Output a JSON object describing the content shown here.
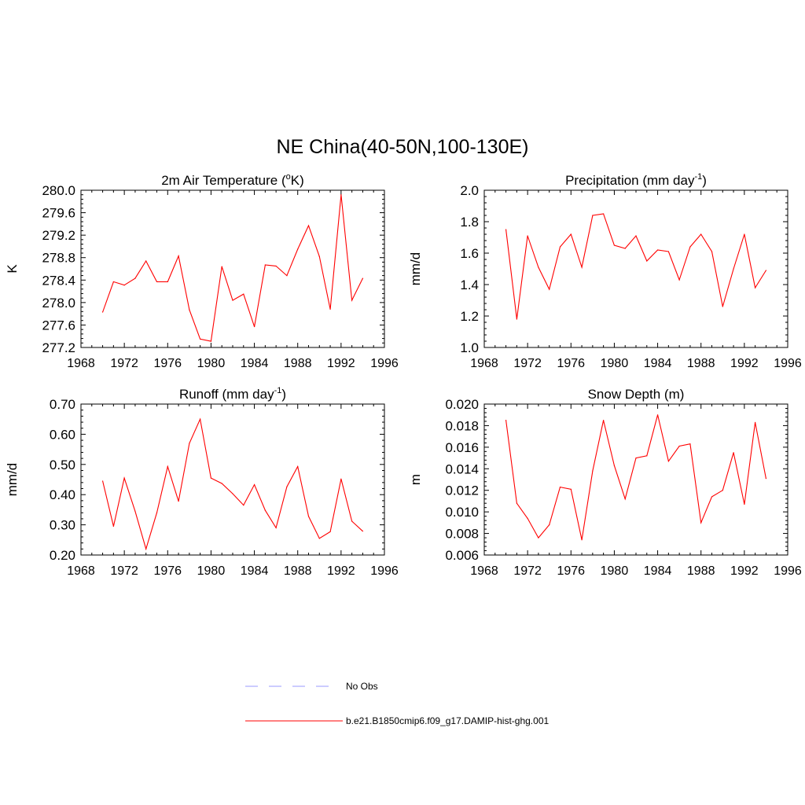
{
  "figure": {
    "title": "NE China(40-50N,100-130E)"
  },
  "colors": {
    "model_line": "#ff0000",
    "obs_line": "#9999ff",
    "axis": "#000000"
  },
  "chart_data": [
    {
      "type": "line",
      "title": "2m Air Temperature (",
      "title_sup": "o",
      "title_after": "K)",
      "ylabel": "K",
      "xlim": [
        1968,
        1996
      ],
      "ylim": [
        277.2,
        280.0
      ],
      "xticks": [
        "1968",
        "1972",
        "1976",
        "1980",
        "1984",
        "1988",
        "1992",
        "1996"
      ],
      "yticks": [
        "277.2",
        "277.6",
        "278.0",
        "278.4",
        "278.8",
        "279.2",
        "279.6",
        "280.0"
      ],
      "series": [
        {
          "x": [
            1970,
            1971,
            1972,
            1973,
            1974,
            1975,
            1976,
            1977,
            1978,
            1979,
            1980,
            1981,
            1982,
            1983,
            1984,
            1985,
            1986,
            1987,
            1988,
            1989,
            1990,
            1991,
            1992,
            1993,
            1994
          ],
          "y": [
            277.83,
            278.37,
            278.31,
            278.43,
            278.74,
            278.37,
            278.37,
            278.83,
            277.87,
            277.35,
            277.31,
            278.64,
            278.04,
            278.15,
            277.57,
            278.67,
            278.65,
            278.48,
            278.95,
            279.37,
            278.82,
            277.88,
            279.92,
            278.04,
            278.43
          ]
        }
      ]
    },
    {
      "type": "line",
      "title": "Precipitation (mm day",
      "title_sup": "-1",
      "title_after": ")",
      "ylabel": "mm/d",
      "xlim": [
        1968,
        1996
      ],
      "ylim": [
        1.0,
        2.0
      ],
      "xticks": [
        "1968",
        "1972",
        "1976",
        "1980",
        "1984",
        "1988",
        "1992",
        "1996"
      ],
      "yticks": [
        "1.0",
        "1.2",
        "1.4",
        "1.6",
        "1.8",
        "2.0"
      ],
      "series": [
        {
          "x": [
            1970,
            1971,
            1972,
            1973,
            1974,
            1975,
            1976,
            1977,
            1978,
            1979,
            1980,
            1981,
            1982,
            1983,
            1984,
            1985,
            1986,
            1987,
            1988,
            1989,
            1990,
            1991,
            1992,
            1993,
            1994
          ],
          "y": [
            1.75,
            1.18,
            1.71,
            1.51,
            1.37,
            1.64,
            1.72,
            1.51,
            1.84,
            1.85,
            1.65,
            1.63,
            1.71,
            1.55,
            1.62,
            1.61,
            1.43,
            1.64,
            1.72,
            1.61,
            1.26,
            1.5,
            1.72,
            1.38,
            1.49
          ]
        }
      ]
    },
    {
      "type": "line",
      "title": "Runoff (mm day",
      "title_sup": "-1",
      "title_after": ")",
      "ylabel": "mm/d",
      "xlim": [
        1968,
        1996
      ],
      "ylim": [
        0.2,
        0.7
      ],
      "xticks": [
        "1968",
        "1972",
        "1976",
        "1980",
        "1984",
        "1988",
        "1992",
        "1996"
      ],
      "yticks": [
        "0.20",
        "0.30",
        "0.40",
        "0.50",
        "0.60",
        "0.70"
      ],
      "series": [
        {
          "x": [
            1970,
            1971,
            1972,
            1973,
            1974,
            1975,
            1976,
            1977,
            1978,
            1979,
            1980,
            1981,
            1982,
            1983,
            1984,
            1985,
            1986,
            1987,
            1988,
            1989,
            1990,
            1991,
            1992,
            1993,
            1994
          ],
          "y": [
            0.445,
            0.295,
            0.455,
            0.345,
            0.22,
            0.34,
            0.493,
            0.378,
            0.57,
            0.65,
            0.455,
            0.437,
            0.403,
            0.365,
            0.433,
            0.348,
            0.29,
            0.426,
            0.493,
            0.328,
            0.255,
            0.277,
            0.452,
            0.312,
            0.279
          ]
        }
      ]
    },
    {
      "type": "line",
      "title": "Snow Depth (m)",
      "title_sup": "",
      "title_after": "",
      "ylabel": "m",
      "xlim": [
        1968,
        1996
      ],
      "ylim": [
        0.006,
        0.02
      ],
      "xticks": [
        "1968",
        "1972",
        "1976",
        "1980",
        "1984",
        "1988",
        "1992",
        "1996"
      ],
      "yticks": [
        "0.006",
        "0.008",
        "0.010",
        "0.012",
        "0.014",
        "0.016",
        "0.018",
        "0.020"
      ],
      "series": [
        {
          "x": [
            1970,
            1971,
            1972,
            1973,
            1974,
            1975,
            1976,
            1977,
            1978,
            1979,
            1980,
            1981,
            1982,
            1983,
            1984,
            1985,
            1986,
            1987,
            1988,
            1989,
            1990,
            1991,
            1992,
            1993,
            1994
          ],
          "y": [
            0.0185,
            0.0108,
            0.0094,
            0.0076,
            0.0088,
            0.0123,
            0.0121,
            0.0074,
            0.0138,
            0.0185,
            0.0143,
            0.0112,
            0.015,
            0.0152,
            0.019,
            0.0147,
            0.0161,
            0.0163,
            0.009,
            0.0114,
            0.012,
            0.0155,
            0.0107,
            0.0183,
            0.0131
          ]
        }
      ]
    }
  ],
  "legend": {
    "items": [
      {
        "label": "No Obs",
        "style": "dashed"
      },
      {
        "label": "b.e21.B1850cmip6.f09_g17.DAMIP-hist-ghg.001",
        "style": "solid"
      }
    ]
  }
}
